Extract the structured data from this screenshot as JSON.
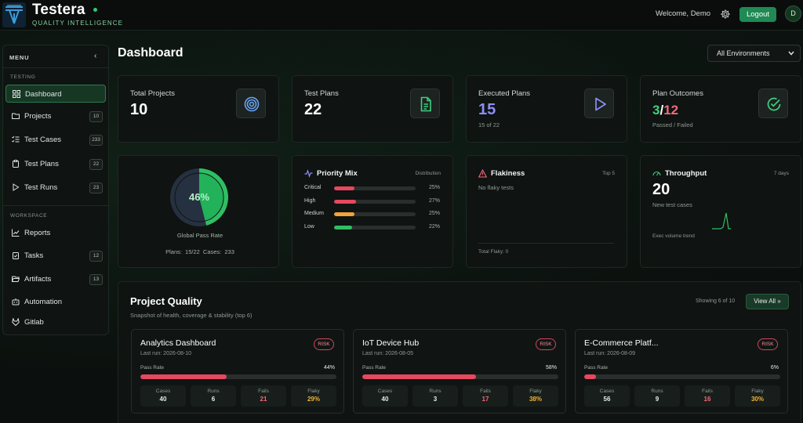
{
  "brand": {
    "name": "Testera",
    "tagline": "QUALITY INTELLIGENCE"
  },
  "header": {
    "welcome": "Welcome, Demo",
    "logout_label": "Logout",
    "avatar_initial": "D"
  },
  "sidebar": {
    "menu_label": "MENU",
    "collapse_glyph": "‹",
    "sections": [
      {
        "label": "TESTING"
      },
      {
        "label": "WORKSPACE"
      }
    ],
    "items": [
      {
        "label": "Dashboard",
        "icon": "grid-icon",
        "active": true
      },
      {
        "label": "Projects",
        "icon": "folder-icon",
        "count": "10"
      },
      {
        "label": "Test Cases",
        "icon": "checklist-icon",
        "count": "233"
      },
      {
        "label": "Test Plans",
        "icon": "clipboard-icon",
        "count": "22"
      },
      {
        "label": "Test Runs",
        "icon": "play-icon",
        "count": "23"
      },
      {
        "label": "Reports",
        "icon": "line-chart-icon"
      },
      {
        "label": "Tasks",
        "icon": "clipboard-check-icon",
        "count": "12"
      },
      {
        "label": "Artifacts",
        "icon": "folder-open-icon",
        "count": "13"
      },
      {
        "label": "Automation",
        "icon": "robot-icon"
      },
      {
        "label": "Gitlab",
        "icon": "gitlab-icon"
      }
    ]
  },
  "page": {
    "title": "Dashboard",
    "environment": "All Environments"
  },
  "stats": [
    {
      "label": "Total Projects",
      "value": "10",
      "icon": "target-icon"
    },
    {
      "label": "Test Plans",
      "value": "22",
      "icon": "document-icon"
    },
    {
      "label": "Executed Plans",
      "value": "15",
      "sub": "15 of 22",
      "icon": "play-icon"
    },
    {
      "label": "Plan Outcomes",
      "passed": "3",
      "slash": "/",
      "failed": "12",
      "sub": "Passed / Failed",
      "icon": "check-circle-icon"
    }
  ],
  "pass_rate": {
    "percent_label": "46%",
    "fraction": 0.46,
    "label": "Global Pass Rate",
    "plans": "Plans: 15/22",
    "cases": "Cases: 233"
  },
  "priority": {
    "title": "Priority Mix",
    "tag": "Distribution",
    "rows": [
      {
        "name": "Critical",
        "pct": "25%",
        "value": 25,
        "color": "#e5485f"
      },
      {
        "name": "High",
        "pct": "27%",
        "value": 27,
        "color": "#e5485f"
      },
      {
        "name": "Medium",
        "pct": "25%",
        "value": 25,
        "color": "#f2a33a"
      },
      {
        "name": "Low",
        "pct": "22%",
        "value": 22,
        "color": "#2fbf63"
      }
    ]
  },
  "flakiness": {
    "title": "Flakiness",
    "tag": "Top 5",
    "empty": "No flaky tests",
    "total": "Total Flaky: 0"
  },
  "throughput": {
    "title": "Throughput",
    "tag": "7 days",
    "value": "20",
    "sub": "New test cases",
    "trend_label": "Exec volume trend"
  },
  "project_quality": {
    "title": "Project Quality",
    "subtitle": "Snapshot of health, coverage & stability (top 6)",
    "showing": "Showing 6 of 10",
    "view_all": "View All »",
    "pass_rate_label": "Pass Rate",
    "metric_labels": {
      "cases": "Cases",
      "runs": "Runs",
      "fails": "Fails",
      "flaky": "Flaky"
    },
    "projects": [
      {
        "name": "Analytics Dashboard",
        "last_run": "Last run: 2026-08-10",
        "badge": "RISK",
        "pass_rate": "44%",
        "pass_value": 44,
        "cases": "40",
        "runs": "6",
        "fails": "21",
        "flaky": "29%"
      },
      {
        "name": "IoT Device Hub",
        "last_run": "Last run: 2026-08-05",
        "badge": "RISK",
        "pass_rate": "58%",
        "pass_value": 58,
        "cases": "40",
        "runs": "3",
        "fails": "17",
        "flaky": "38%"
      },
      {
        "name": "E-Commerce Platf...",
        "last_run": "Last run: 2026-08-09",
        "badge": "RISK",
        "pass_rate": "6%",
        "pass_value": 6,
        "cases": "56",
        "runs": "9",
        "fails": "16",
        "flaky": "30%"
      }
    ]
  },
  "colors": {
    "accent": "#1f8a53",
    "danger": "#e5485f",
    "warning": "#f2a33a",
    "success": "#2fbf63",
    "info": "#8b8ff5"
  }
}
